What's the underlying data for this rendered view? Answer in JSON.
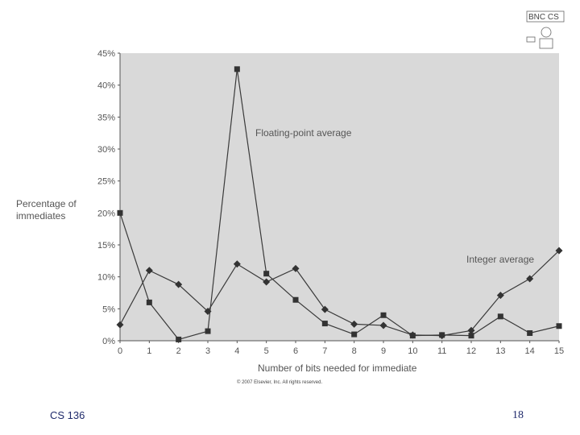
{
  "footer": {
    "course": "CS 136",
    "page": "18"
  },
  "logo": {
    "text": "BNC CS"
  },
  "chart_data": {
    "type": "line",
    "title": "",
    "xlabel": "Number of bits needed for immediate",
    "ylabel": [
      "Percentage of",
      "immediates"
    ],
    "x": [
      0,
      1,
      2,
      3,
      4,
      5,
      6,
      7,
      8,
      9,
      10,
      11,
      12,
      13,
      14,
      15
    ],
    "xlim": [
      0,
      15
    ],
    "ylim": [
      0,
      45
    ],
    "yticks": [
      0,
      5,
      10,
      15,
      20,
      25,
      30,
      35,
      40,
      45
    ],
    "ytick_labels": [
      "0%",
      "5%",
      "10%",
      "15%",
      "20%",
      "25%",
      "30%",
      "35%",
      "40%",
      "45%"
    ],
    "xtick_labels": [
      "0",
      "1",
      "2",
      "3",
      "4",
      "5",
      "6",
      "7",
      "8",
      "9",
      "10",
      "11",
      "12",
      "13",
      "14",
      "15"
    ],
    "grid": false,
    "series": [
      {
        "name": "Floating-point average",
        "marker": "square",
        "values": [
          20,
          6,
          0.2,
          1.5,
          42.5,
          10.5,
          6.4,
          2.7,
          1,
          4,
          0.8,
          0.9,
          0.8,
          3.8,
          1.2,
          2.3
        ]
      },
      {
        "name": "Integer average",
        "marker": "diamond",
        "values": [
          2.5,
          11,
          8.8,
          4.6,
          12,
          9.2,
          11.3,
          4.9,
          2.6,
          2.4,
          0.9,
          0.8,
          1.6,
          7.1,
          9.7,
          14.1
        ]
      }
    ],
    "annotations": [
      "Floating-point average",
      "Integer average"
    ],
    "copyright": "© 2007 Elsevier, Inc. All rights reserved."
  }
}
